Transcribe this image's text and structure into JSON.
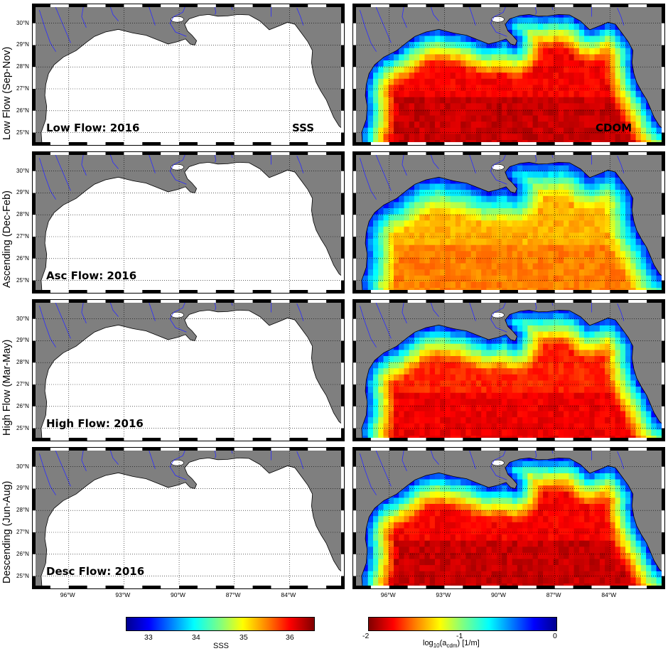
{
  "rows": [
    {
      "label": "Low Flow (Sep-Nov)",
      "panel_title": "Low Flow: 2016",
      "title_position": "top",
      "cdom_level": 0.9
    },
    {
      "label": "Ascending (Dec-Feb)",
      "panel_title": "Asc Flow: 2016",
      "title_position": "bottom",
      "cdom_level": 0.72
    },
    {
      "label": "High Flow (Mar-May)",
      "panel_title": "High Flow: 2016",
      "title_position": "bottom",
      "cdom_level": 0.86
    },
    {
      "label": "Descending (Jun-Aug)",
      "panel_title": "Desc Flow: 2016",
      "title_position": "bottom",
      "cdom_level": 0.9
    }
  ],
  "panel_tags": {
    "left": "SSS",
    "right": "CDOM"
  },
  "latitude_labels": [
    "30°N",
    "29°N",
    "28°N",
    "27°N",
    "26°N",
    "25°N"
  ],
  "longitude_labels": [
    "96°W",
    "93°W",
    "90°W",
    "87°W",
    "84°W"
  ],
  "colorbars": {
    "sss": {
      "title": "SSS",
      "ticks": [
        "33",
        "34",
        "35",
        "36"
      ],
      "range": [
        32.5,
        36.5
      ],
      "colormap": "jet"
    },
    "cdom": {
      "title": "log10(acdm) [1/m]",
      "title_base": "log",
      "title_base_sub": "10",
      "title_mid": "(a",
      "title_sub": "cdm",
      "title_end": ") [1/m]",
      "ticks": [
        "-2",
        "-1",
        "0"
      ],
      "range": [
        -2,
        0
      ],
      "colormap": "jet reversed"
    }
  },
  "colors": {
    "land": "#7f7f7f",
    "ocean_sss": "#ffffff",
    "rivers": "#2c2cff",
    "grid": "#000000"
  }
}
